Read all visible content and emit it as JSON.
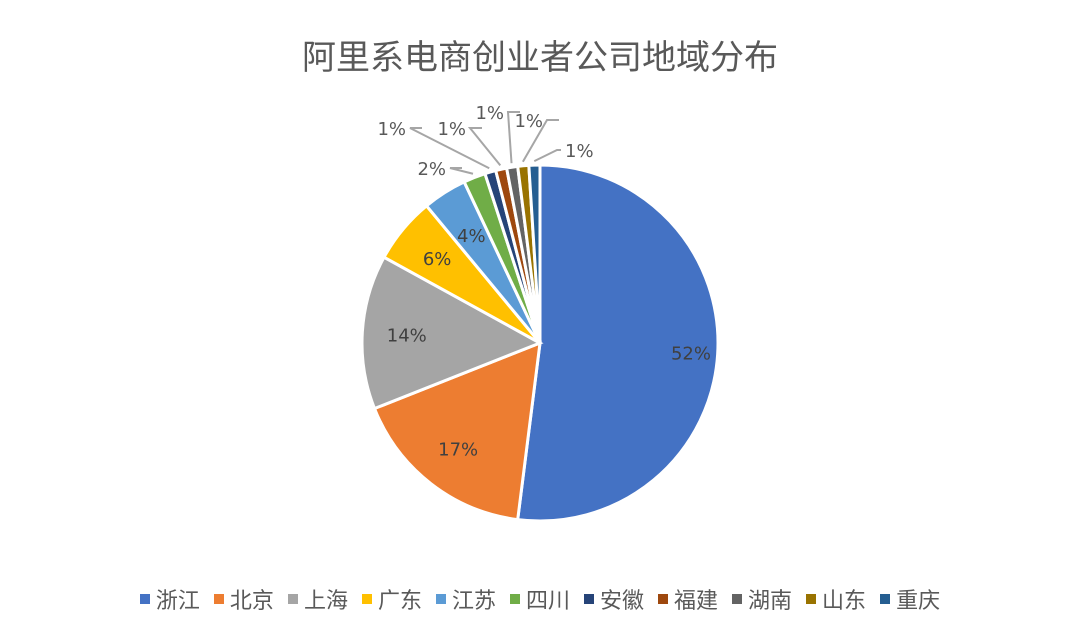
{
  "chart_data": {
    "type": "pie",
    "title": "阿里系电商创业者公司地域分布",
    "categories": [
      "浙江",
      "北京",
      "上海",
      "广东",
      "江苏",
      "四川",
      "安徽",
      "福建",
      "湖南",
      "山东",
      "重庆"
    ],
    "values": [
      52,
      17,
      14,
      6,
      4,
      2,
      1,
      1,
      1,
      1,
      1
    ],
    "labels": [
      "52%",
      "17%",
      "14%",
      "6%",
      "4%",
      "2%",
      "1%",
      "1%",
      "1%",
      "1%",
      "1%"
    ],
    "colors": [
      "#4472C4",
      "#ED7D31",
      "#A5A5A5",
      "#FFC000",
      "#5B9BD5",
      "#70AD47",
      "#264478",
      "#9E480E",
      "#636363",
      "#997300",
      "#255E91"
    ],
    "legend_position": "bottom",
    "start_angle": "top, clockwise"
  }
}
